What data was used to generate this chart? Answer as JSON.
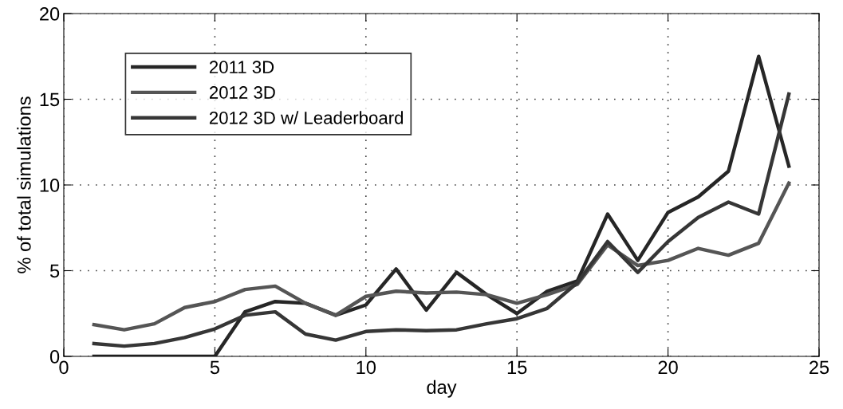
{
  "chart_data": {
    "type": "line",
    "xlabel": "day",
    "ylabel": "% of total simulations",
    "x": [
      1,
      2,
      3,
      4,
      5,
      6,
      7,
      8,
      9,
      10,
      11,
      12,
      13,
      14,
      15,
      16,
      17,
      18,
      19,
      20,
      21,
      22,
      23,
      24
    ],
    "series": [
      {
        "name": "2011 3D",
        "color": "#262626",
        "values": [
          0,
          0,
          0,
          0,
          0,
          2.6,
          3.2,
          3.1,
          2.4,
          3.0,
          5.1,
          2.7,
          4.9,
          3.6,
          2.5,
          3.8,
          4.4,
          8.3,
          5.6,
          8.4,
          9.3,
          10.8,
          17.5,
          11.1
        ]
      },
      {
        "name": "2012 3D",
        "color": "#555555",
        "values": [
          1.85,
          1.55,
          1.9,
          2.85,
          3.2,
          3.9,
          4.1,
          3.1,
          2.4,
          3.5,
          3.8,
          3.7,
          3.75,
          3.6,
          3.1,
          3.6,
          4.2,
          6.5,
          5.3,
          5.6,
          6.3,
          5.9,
          6.6,
          10.1
        ]
      },
      {
        "name": "2012 3D w/ Leaderboard",
        "color": "#363636",
        "values": [
          0.75,
          0.6,
          0.75,
          1.1,
          1.6,
          2.4,
          2.6,
          1.3,
          0.95,
          1.45,
          1.55,
          1.5,
          1.55,
          1.9,
          2.2,
          2.8,
          4.3,
          6.7,
          4.9,
          6.7,
          8.1,
          9.0,
          8.3,
          15.3
        ]
      }
    ],
    "xlim": [
      0,
      25
    ],
    "ylim": [
      0,
      20
    ],
    "xticks": [
      0,
      5,
      10,
      15,
      20,
      25
    ],
    "yticks": [
      0,
      5,
      10,
      15,
      20
    ],
    "grid": true,
    "legend": "top left",
    "line_style": "solid",
    "marker": "none"
  }
}
